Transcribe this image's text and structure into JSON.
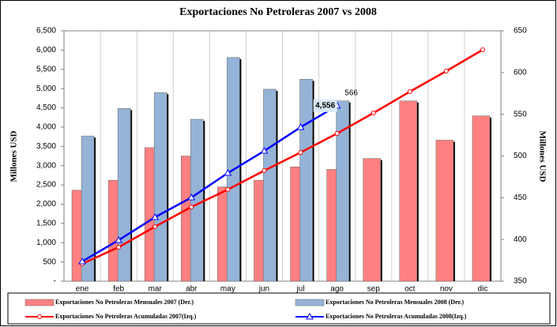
{
  "chart_data": {
    "type": "bar",
    "title": "Exportaciones No Petroleras 2007 vs 2008",
    "y_label": "Millones USD",
    "y2_label": "Millones USD",
    "categories": [
      "ene",
      "feb",
      "mar",
      "abr",
      "may",
      "jun",
      "jul",
      "ago",
      "sep",
      "oct",
      "nov",
      "dic"
    ],
    "series": [
      {
        "name": "Exportaciones No Petroleras Mensuales 2007 (Der.)",
        "type": "bar",
        "axis": "y2",
        "color": "#ff8080",
        "values": [
          459,
          471,
          510,
          500,
          463,
          471,
          487,
          484,
          497,
          566,
          519,
          548
        ]
      },
      {
        "name": "Exportaciones No Petroleras Mensuales 2008 (Der.)",
        "type": "bar",
        "axis": "y2",
        "color": "#95b3d7",
        "values": [
          524,
          557,
          576,
          544,
          618,
          580,
          592,
          566,
          null,
          null,
          null,
          null
        ],
        "value_labels": [
          null,
          null,
          null,
          null,
          null,
          null,
          null,
          "566",
          null,
          null,
          null,
          null
        ]
      },
      {
        "name": "Exportaciones No Petroleras Acumuladas 2007(Izq.)",
        "type": "line",
        "axis": "y",
        "color": "#ff0000",
        "values": [
          451,
          882,
          1415,
          1927,
          2379,
          2871,
          3342,
          3834,
          4367,
          4921,
          5454,
          6008
        ]
      },
      {
        "name": "Exportaciones No Petroleras Acumuladas 2008(Izq.)",
        "type": "line",
        "axis": "y",
        "color": "#0000ff",
        "values": [
          513,
          1066,
          1661,
          2173,
          2809,
          3383,
          3998,
          4556,
          null,
          null,
          null,
          null
        ],
        "value_labels": [
          null,
          null,
          null,
          null,
          null,
          null,
          null,
          "4,556",
          null,
          null,
          null,
          null
        ]
      }
    ],
    "ylim": [
      0,
      6500
    ],
    "yticks": [
      {
        "value": 0,
        "label": "-"
      },
      500,
      {
        "value": 1000,
        "label": "1,000"
      },
      {
        "value": 1500,
        "label": "1,500"
      },
      {
        "value": 2000,
        "label": "2,000"
      },
      {
        "value": 2500,
        "label": "2,500"
      },
      {
        "value": 3000,
        "label": "3,000"
      },
      {
        "value": 3500,
        "label": "3,500"
      },
      {
        "value": 4000,
        "label": "4,000"
      },
      {
        "value": 4500,
        "label": "4,500"
      },
      {
        "value": 5000,
        "label": "5,000"
      },
      {
        "value": 5500,
        "label": "5,500"
      },
      {
        "value": 6000,
        "label": "6,000"
      },
      {
        "value": 6500,
        "label": "6,500"
      }
    ],
    "y2lim": [
      350,
      650
    ],
    "y2ticks": [
      350,
      400,
      450,
      500,
      550,
      600,
      650
    ]
  }
}
